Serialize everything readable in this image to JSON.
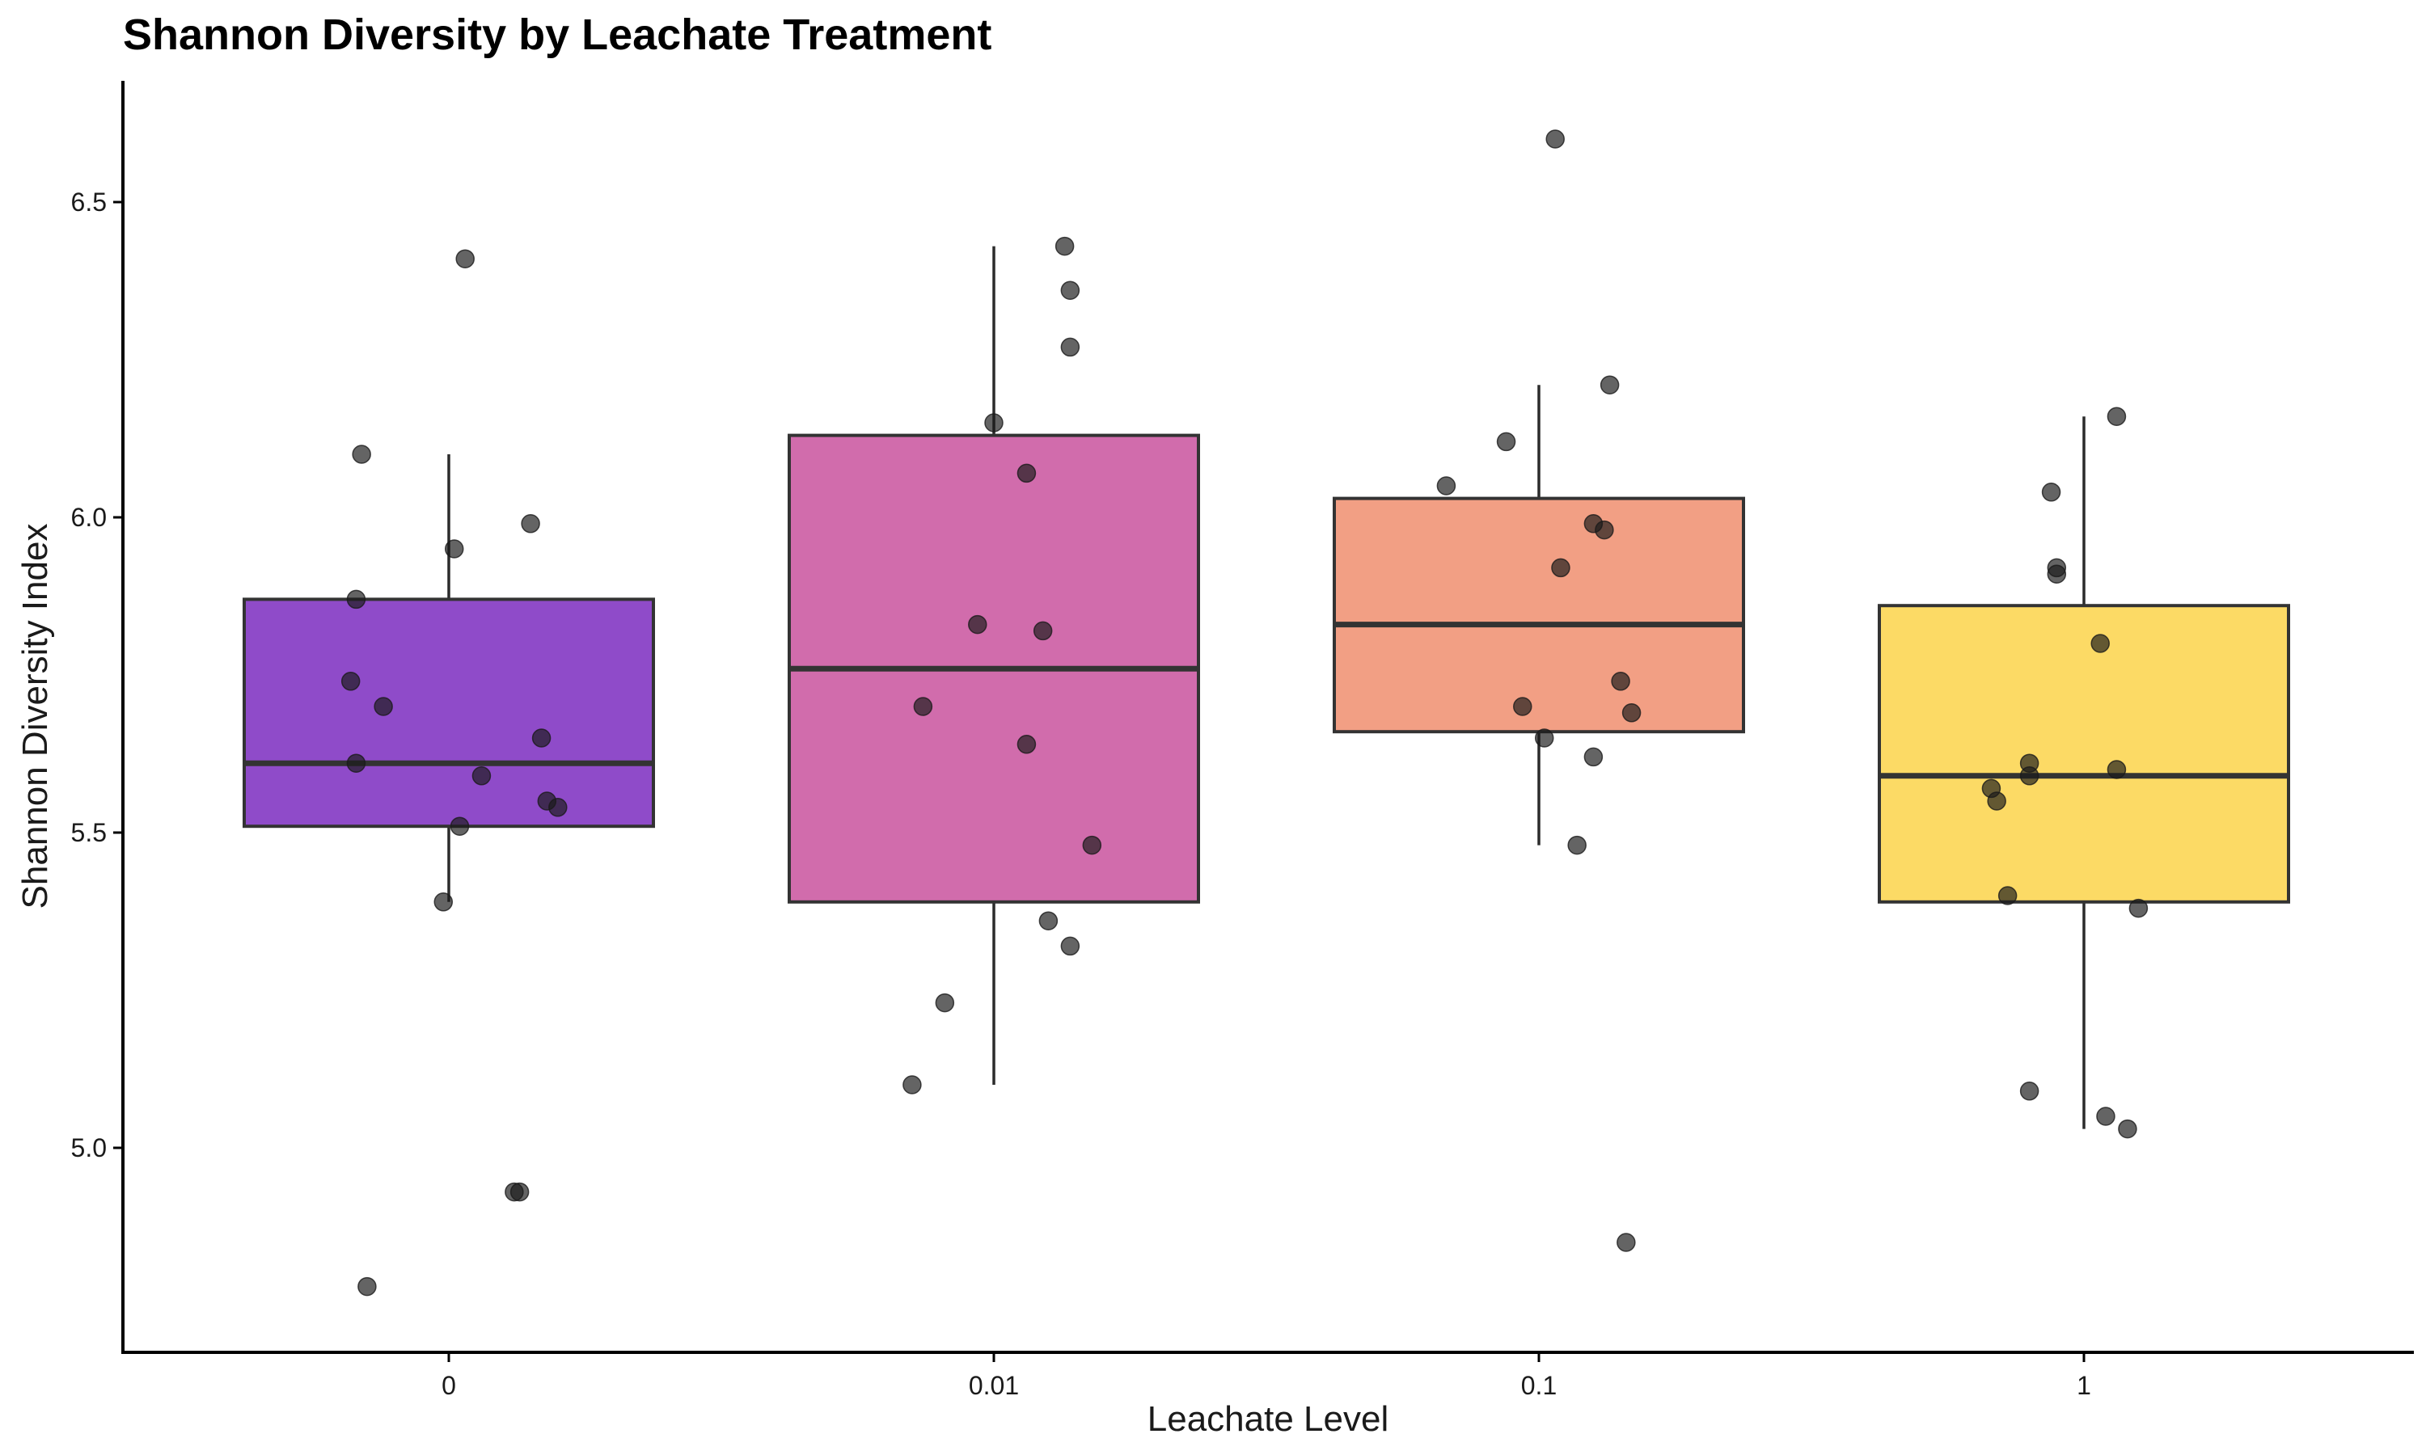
{
  "chart_data": {
    "type": "box",
    "title": "Shannon Diversity by Leachate Treatment",
    "xlabel": "Leachate Level",
    "ylabel": "Shannon Diversity Index",
    "ylim": [
      4.7,
      6.7
    ],
    "yticks": [
      "5.0",
      "5.5",
      "6.0",
      "6.5"
    ],
    "grid": false,
    "legend": "none",
    "categories": [
      "0",
      "0.01",
      "0.1",
      "1"
    ],
    "boxes": [
      {
        "category": "0",
        "color": "#7B2CBF",
        "q1": 5.51,
        "median": 5.61,
        "q3": 5.87,
        "whisker_low": 5.39,
        "whisker_high": 6.1
      },
      {
        "category": "0.01",
        "color": "#C9529E",
        "q1": 5.39,
        "median": 5.76,
        "q3": 6.13,
        "whisker_low": 5.1,
        "whisker_high": 6.43
      },
      {
        "category": "0.1",
        "color": "#F08E6E",
        "q1": 5.66,
        "median": 5.83,
        "q3": 6.03,
        "whisker_low": 5.48,
        "whisker_high": 6.21
      },
      {
        "category": "1",
        "color": "#FCD34A",
        "q1": 5.39,
        "median": 5.59,
        "q3": 5.86,
        "whisker_low": 5.03,
        "whisker_high": 6.16
      }
    ],
    "points": [
      {
        "category": "0",
        "points": [
          {
            "jitter": -0.16,
            "y": 6.1
          },
          {
            "jitter": 0.03,
            "y": 6.41
          },
          {
            "jitter": 0.15,
            "y": 5.99
          },
          {
            "jitter": 0.01,
            "y": 5.95
          },
          {
            "jitter": -0.17,
            "y": 5.87
          },
          {
            "jitter": -0.18,
            "y": 5.74
          },
          {
            "jitter": -0.12,
            "y": 5.7
          },
          {
            "jitter": 0.17,
            "y": 5.65
          },
          {
            "jitter": -0.17,
            "y": 5.61
          },
          {
            "jitter": 0.06,
            "y": 5.59
          },
          {
            "jitter": 0.18,
            "y": 5.55
          },
          {
            "jitter": 0.2,
            "y": 5.54
          },
          {
            "jitter": 0.02,
            "y": 5.51
          },
          {
            "jitter": -0.01,
            "y": 5.39
          },
          {
            "jitter": 0.12,
            "y": 4.93
          },
          {
            "jitter": 0.13,
            "y": 4.93
          },
          {
            "jitter": -0.15,
            "y": 4.78
          }
        ]
      },
      {
        "category": "0.01",
        "points": [
          {
            "jitter": 0.13,
            "y": 6.43
          },
          {
            "jitter": 0.14,
            "y": 6.36
          },
          {
            "jitter": 0.14,
            "y": 6.27
          },
          {
            "jitter": 0.0,
            "y": 6.15
          },
          {
            "jitter": 0.06,
            "y": 6.07
          },
          {
            "jitter": -0.03,
            "y": 5.83
          },
          {
            "jitter": 0.09,
            "y": 5.82
          },
          {
            "jitter": -0.13,
            "y": 5.7
          },
          {
            "jitter": 0.06,
            "y": 5.64
          },
          {
            "jitter": 0.18,
            "y": 5.48
          },
          {
            "jitter": 0.1,
            "y": 5.36
          },
          {
            "jitter": 0.14,
            "y": 5.32
          },
          {
            "jitter": -0.09,
            "y": 5.23
          },
          {
            "jitter": -0.15,
            "y": 5.1
          }
        ]
      },
      {
        "category": "0.1",
        "points": [
          {
            "jitter": 0.03,
            "y": 6.6
          },
          {
            "jitter": 0.13,
            "y": 6.21
          },
          {
            "jitter": -0.06,
            "y": 6.12
          },
          {
            "jitter": -0.17,
            "y": 6.05
          },
          {
            "jitter": 0.1,
            "y": 5.99
          },
          {
            "jitter": 0.12,
            "y": 5.98
          },
          {
            "jitter": 0.04,
            "y": 5.92
          },
          {
            "jitter": 0.15,
            "y": 5.74
          },
          {
            "jitter": -0.03,
            "y": 5.7
          },
          {
            "jitter": 0.17,
            "y": 5.69
          },
          {
            "jitter": 0.01,
            "y": 5.65
          },
          {
            "jitter": 0.1,
            "y": 5.62
          },
          {
            "jitter": 0.07,
            "y": 5.48
          },
          {
            "jitter": 0.16,
            "y": 4.85
          }
        ]
      },
      {
        "category": "1",
        "points": [
          {
            "jitter": 0.06,
            "y": 6.16
          },
          {
            "jitter": -0.06,
            "y": 6.04
          },
          {
            "jitter": -0.05,
            "y": 5.92
          },
          {
            "jitter": -0.05,
            "y": 5.91
          },
          {
            "jitter": 0.03,
            "y": 5.8
          },
          {
            "jitter": -0.1,
            "y": 5.61
          },
          {
            "jitter": 0.06,
            "y": 5.6
          },
          {
            "jitter": -0.1,
            "y": 5.59
          },
          {
            "jitter": -0.17,
            "y": 5.57
          },
          {
            "jitter": -0.16,
            "y": 5.55
          },
          {
            "jitter": -0.14,
            "y": 5.4
          },
          {
            "jitter": 0.1,
            "y": 5.38
          },
          {
            "jitter": -0.1,
            "y": 5.09
          },
          {
            "jitter": 0.04,
            "y": 5.05
          },
          {
            "jitter": 0.08,
            "y": 5.03
          }
        ]
      }
    ]
  }
}
